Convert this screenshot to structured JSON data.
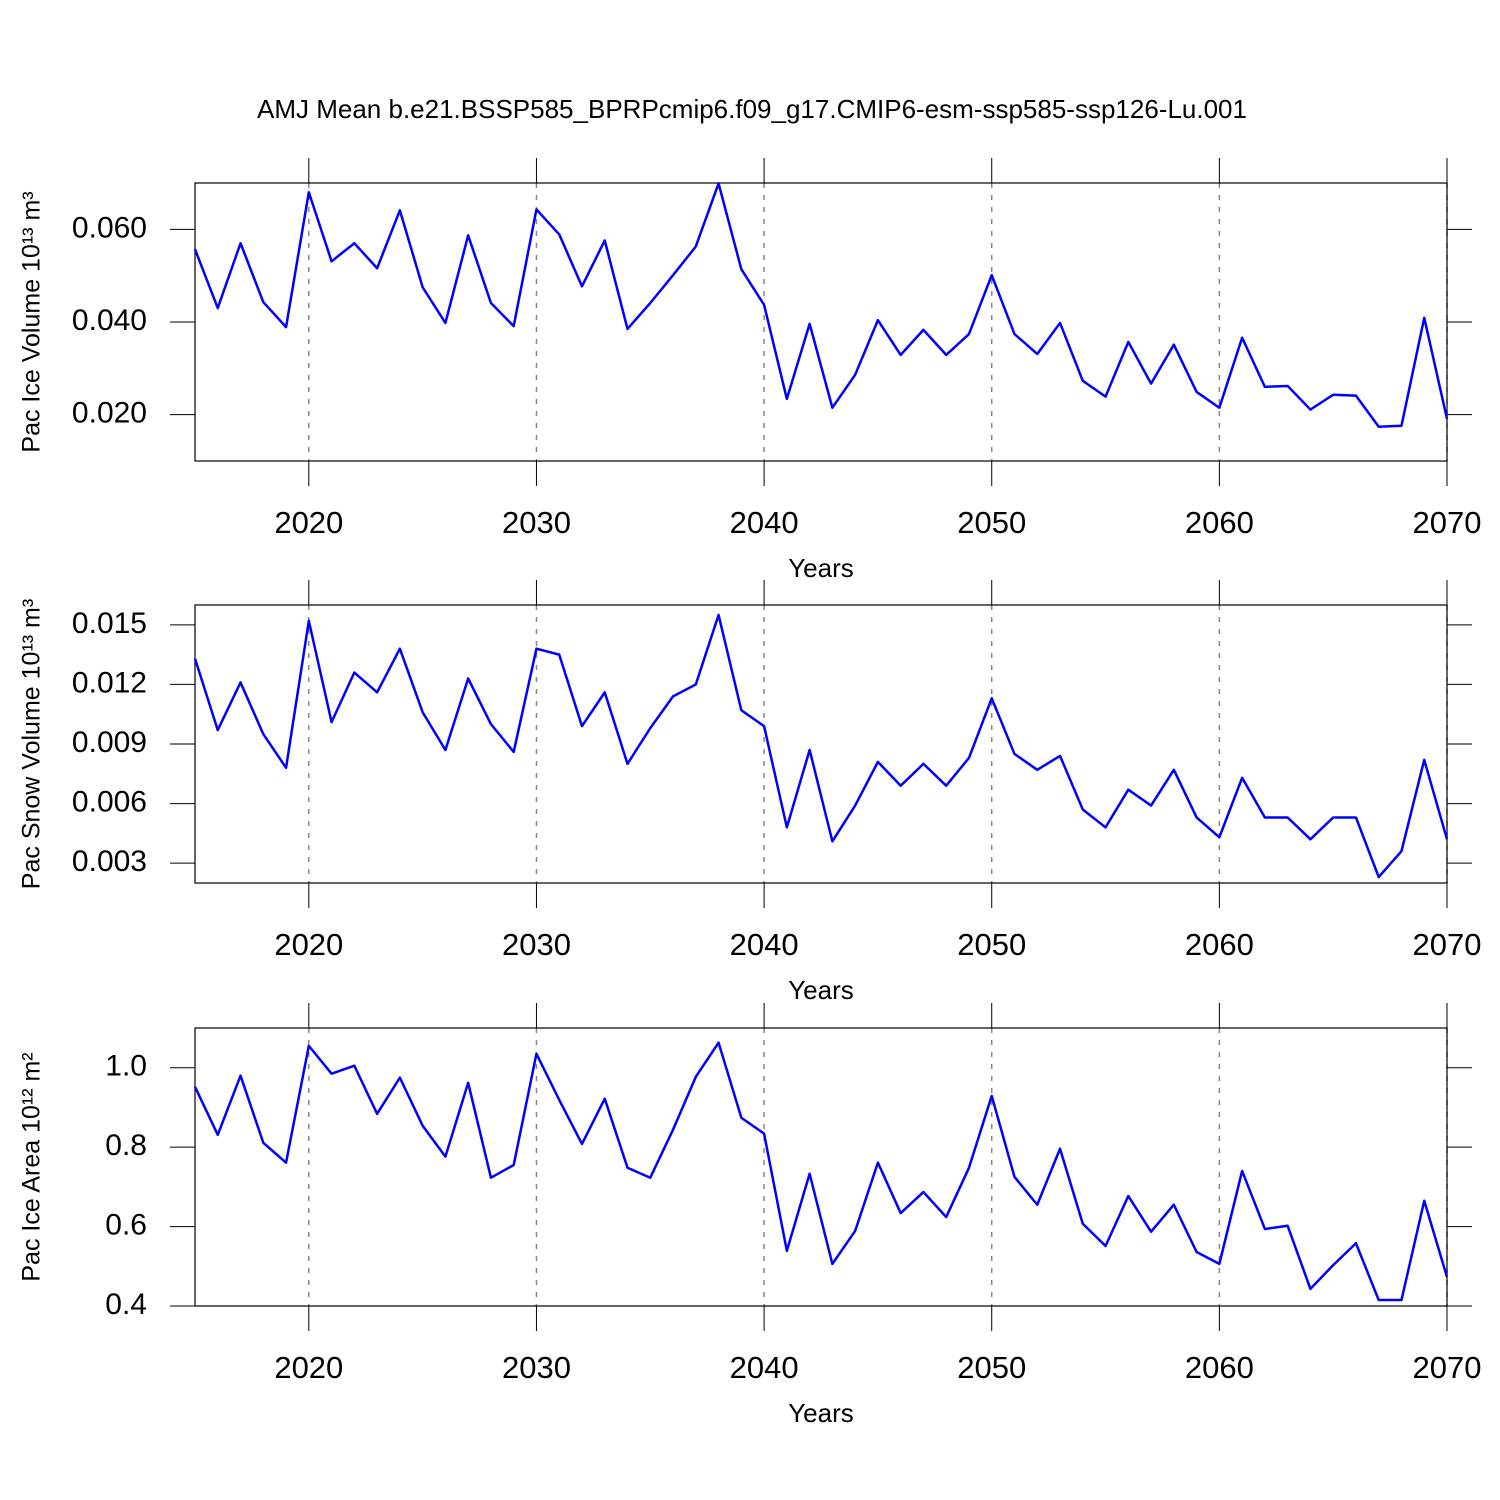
{
  "chart_data": [
    {
      "type": "line",
      "title": "AMJ Mean b.e21.BSSP585_BPRPcmip6.f09_g17.CMIP6-esm-ssp585-ssp126-Lu.001",
      "xlabel": "Years",
      "ylabel": "Pac Ice Volume 10¹³ m³",
      "color": "#0000ff",
      "grid": true,
      "x": [
        2015,
        2016,
        2017,
        2018,
        2019,
        2020,
        2021,
        2022,
        2023,
        2024,
        2025,
        2026,
        2027,
        2028,
        2029,
        2030,
        2031,
        2032,
        2033,
        2034,
        2035,
        2036,
        2037,
        2038,
        2039,
        2040,
        2041,
        2042,
        2043,
        2044,
        2045,
        2046,
        2047,
        2048,
        2049,
        2050,
        2051,
        2052,
        2053,
        2054,
        2055,
        2056,
        2057,
        2058,
        2059,
        2060,
        2061,
        2062,
        2063,
        2064,
        2065,
        2066,
        2067,
        2068,
        2069,
        2070
      ],
      "values": [
        0.0557,
        0.043,
        0.057,
        0.0443,
        0.0389,
        0.068,
        0.0531,
        0.057,
        0.0516,
        0.0641,
        0.0475,
        0.0398,
        0.0587,
        0.0441,
        0.0391,
        0.0643,
        0.0589,
        0.0477,
        0.0576,
        0.0385,
        0.0441,
        0.0501,
        0.0563,
        0.0699,
        0.0514,
        0.0437,
        0.0234,
        0.0396,
        0.0215,
        0.0286,
        0.0404,
        0.0329,
        0.0383,
        0.0329,
        0.0374,
        0.0501,
        0.0374,
        0.0331,
        0.0398,
        0.0273,
        0.0239,
        0.0357,
        0.0267,
        0.0351,
        0.0249,
        0.0215,
        0.0366,
        0.026,
        0.0262,
        0.0211,
        0.0243,
        0.0241,
        0.0174,
        0.0176,
        0.0409,
        0.0191
      ],
      "xlim": [
        2015,
        2070
      ],
      "xticks": [
        2020,
        2030,
        2040,
        2050,
        2060,
        2070
      ],
      "ylim": [
        0.01,
        0.07
      ],
      "yticks": [
        {
          "value": 0.02,
          "label": "0.020"
        },
        {
          "value": 0.04,
          "label": "0.040"
        },
        {
          "value": 0.06,
          "label": "0.060"
        }
      ]
    },
    {
      "type": "line",
      "xlabel": "Years",
      "ylabel": "Pac Snow Volume 10¹³ m³",
      "color": "#0000ff",
      "grid": true,
      "x": [
        2015,
        2016,
        2017,
        2018,
        2019,
        2020,
        2021,
        2022,
        2023,
        2024,
        2025,
        2026,
        2027,
        2028,
        2029,
        2030,
        2031,
        2032,
        2033,
        2034,
        2035,
        2036,
        2037,
        2038,
        2039,
        2040,
        2041,
        2042,
        2043,
        2044,
        2045,
        2046,
        2047,
        2048,
        2049,
        2050,
        2051,
        2052,
        2053,
        2054,
        2055,
        2056,
        2057,
        2058,
        2059,
        2060,
        2061,
        2062,
        2063,
        2064,
        2065,
        2066,
        2067,
        2068,
        2069,
        2070
      ],
      "values": [
        0.0133,
        0.0097,
        0.0121,
        0.0095,
        0.0078,
        0.0152,
        0.0101,
        0.0126,
        0.0116,
        0.0138,
        0.0106,
        0.0087,
        0.0123,
        0.01,
        0.0086,
        0.0138,
        0.0135,
        0.0099,
        0.0116,
        0.008,
        0.0098,
        0.0114,
        0.012,
        0.0155,
        0.0107,
        0.0099,
        0.0048,
        0.0087,
        0.0041,
        0.0059,
        0.0081,
        0.0069,
        0.008,
        0.0069,
        0.0083,
        0.0113,
        0.0085,
        0.0077,
        0.0084,
        0.0057,
        0.0048,
        0.0067,
        0.0059,
        0.0077,
        0.0053,
        0.0043,
        0.0073,
        0.0053,
        0.0053,
        0.0042,
        0.0053,
        0.0053,
        0.0023,
        0.0036,
        0.0082,
        0.0042
      ],
      "xlim": [
        2015,
        2070
      ],
      "xticks": [
        2020,
        2030,
        2040,
        2050,
        2060,
        2070
      ],
      "ylim": [
        0.002,
        0.016
      ],
      "yticks": [
        0.003,
        0.006,
        0.009,
        0.012,
        0.015
      ]
    },
    {
      "type": "line",
      "xlabel": "Years",
      "ylabel": "Pac Ice Area 10¹² m²",
      "color": "#0000ff",
      "grid": true,
      "x": [
        2015,
        2016,
        2017,
        2018,
        2019,
        2020,
        2021,
        2022,
        2023,
        2024,
        2025,
        2026,
        2027,
        2028,
        2029,
        2030,
        2031,
        2032,
        2033,
        2034,
        2035,
        2036,
        2037,
        2038,
        2039,
        2040,
        2041,
        2042,
        2043,
        2044,
        2045,
        2046,
        2047,
        2048,
        2049,
        2050,
        2051,
        2052,
        2053,
        2054,
        2055,
        2056,
        2057,
        2058,
        2059,
        2060,
        2061,
        2062,
        2063,
        2064,
        2065,
        2066,
        2067,
        2068,
        2069,
        2070
      ],
      "values": [
        0.952,
        0.831,
        0.98,
        0.811,
        0.761,
        1.055,
        0.985,
        1.005,
        0.884,
        0.975,
        0.854,
        0.776,
        0.962,
        0.723,
        0.755,
        1.035,
        0.919,
        0.808,
        0.922,
        0.748,
        0.723,
        0.844,
        0.977,
        1.063,
        0.874,
        0.834,
        0.539,
        0.733,
        0.506,
        0.589,
        0.761,
        0.634,
        0.687,
        0.624,
        0.748,
        0.929,
        0.725,
        0.655,
        0.796,
        0.607,
        0.551,
        0.677,
        0.587,
        0.655,
        0.536,
        0.506,
        0.74,
        0.594,
        0.602,
        0.443,
        0.503,
        0.558,
        0.415,
        0.415,
        0.665,
        0.473
      ],
      "xlim": [
        2015,
        2070
      ],
      "xticks": [
        2020,
        2030,
        2040,
        2050,
        2060,
        2070
      ],
      "ylim": [
        0.4,
        1.1
      ],
      "yticks": [
        0.4,
        0.6,
        0.8,
        {
          "value": 1.0,
          "label": "1.0"
        }
      ]
    }
  ]
}
